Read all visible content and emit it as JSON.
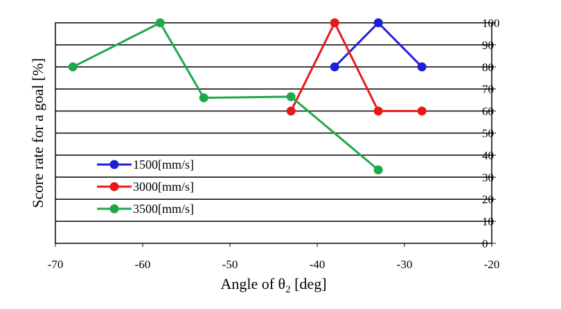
{
  "chart_data": {
    "type": "line",
    "xlabel": "Angle of θ",
    "xlabel_subscript": "2",
    "xlabel_suffix": " [deg]",
    "ylabel": "Score rate for a goal [%]",
    "xlim": [
      -70,
      -20
    ],
    "ylim": [
      0,
      100
    ],
    "xticks": [
      -70,
      -60,
      -50,
      -40,
      -30,
      -20
    ],
    "yticks": [
      0,
      10,
      20,
      30,
      40,
      50,
      60,
      70,
      80,
      90,
      100
    ],
    "grid": "horizontal",
    "legend_position": "bottom-left",
    "series": [
      {
        "name": "1500[mm/s]",
        "color": "#1f1fd6",
        "x": [
          -38,
          -33,
          -28
        ],
        "y": [
          80,
          100,
          80
        ]
      },
      {
        "name": "3000[mm/s]",
        "color": "#e81818",
        "x": [
          -43,
          -38,
          -33,
          -28
        ],
        "y": [
          60,
          100,
          60,
          60
        ]
      },
      {
        "name": "3500[mm/s]",
        "color": "#1ea84a",
        "x": [
          -68,
          -58,
          -53,
          -43,
          -33
        ],
        "y": [
          80,
          100,
          66,
          66.5,
          33.3
        ]
      }
    ]
  }
}
